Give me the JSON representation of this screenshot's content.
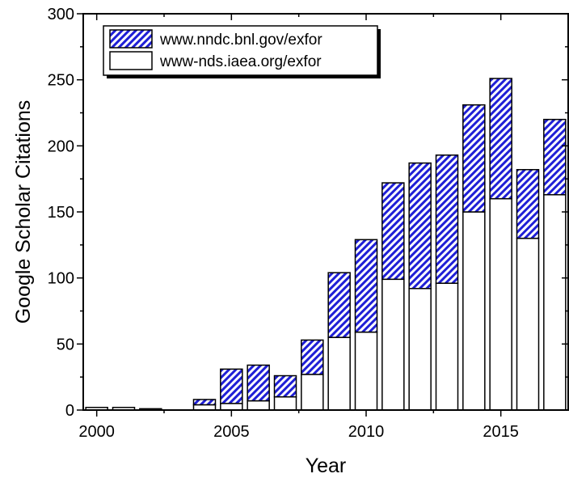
{
  "chart_data": {
    "type": "bar",
    "stacked": true,
    "title": "",
    "xlabel": "Year",
    "ylabel": "Google Scholar Citations",
    "categories": [
      2000,
      2001,
      2002,
      2003,
      2004,
      2005,
      2006,
      2007,
      2008,
      2009,
      2010,
      2011,
      2012,
      2013,
      2014,
      2015,
      2016,
      2017
    ],
    "series": [
      {
        "name": "www-nds.iaea.org/exfor",
        "pattern": "solid",
        "color": "#ffffff",
        "values": [
          2,
          2,
          1,
          0,
          4,
          5,
          7,
          10,
          27,
          55,
          59,
          99,
          92,
          96,
          150,
          160,
          130,
          163
        ]
      },
      {
        "name": "www.nndc.bnl.gov/exfor",
        "pattern": "diagonal-hatch",
        "color": "#1f1fd6",
        "values": [
          0,
          0,
          0,
          0,
          4,
          26,
          27,
          16,
          26,
          49,
          70,
          73,
          95,
          97,
          81,
          91,
          52,
          57
        ]
      }
    ],
    "xlim": [
      1999.5,
      2017.5
    ],
    "ylim": [
      0,
      300
    ],
    "xticks": [
      "2000",
      "2005",
      "2010",
      "2015"
    ],
    "yticks": [
      "0",
      "50",
      "100",
      "150",
      "200",
      "250",
      "300"
    ],
    "legend": {
      "position": "top-left",
      "entries": [
        "www.nndc.bnl.gov/exfor",
        "www-nds.iaea.org/exfor"
      ]
    },
    "grid": false
  }
}
